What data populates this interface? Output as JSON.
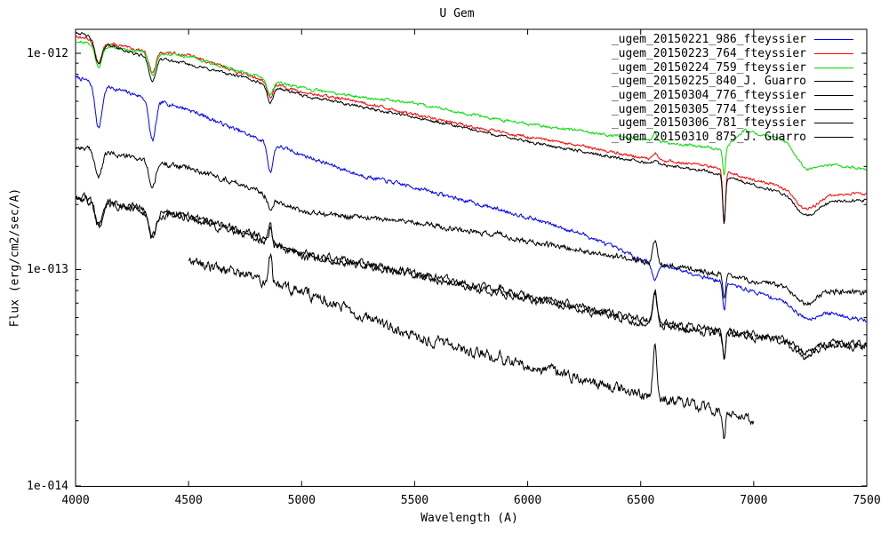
{
  "title": "U Gem",
  "axes": {
    "xlabel": "Wavelength (A)",
    "ylabel": "Flux (erg/cm2/sec/A)",
    "x_tick_labels": [
      "4000",
      "4500",
      "5000",
      "5500",
      "6000",
      "6500",
      "7000",
      "7500"
    ],
    "y_tick_labels": [
      "1e-012",
      "1e-013",
      "1e-014"
    ]
  },
  "chart_data": {
    "type": "line",
    "title": "U Gem",
    "xlabel": "Wavelength (A)",
    "ylabel": "Flux (erg/cm2/sec/A)",
    "x_range": [
      4000,
      7500
    ],
    "x_ticks": [
      4000,
      4500,
      5000,
      5500,
      6000,
      6500,
      7000,
      7500
    ],
    "y_scale": "log",
    "y_range": [
      1e-14,
      1.3e-12
    ],
    "y_ticks": [
      1e-12,
      1e-13,
      1e-14
    ],
    "grid": false,
    "legend_position": "top-right-inside",
    "line_colors": {
      "blue": "#0000ff",
      "red": "#ff0000",
      "green": "#00dd00",
      "black": "#000000"
    },
    "sampling_note": "continuous spectra encoded as log-flux anchor points [wavelength_A, flux_erg_cm2_s_A] plus Gaussian line features (amp in decades; negative=absorption, positive=emission)",
    "series": [
      {
        "name": "_ugem_20150221_986_fteyssier",
        "color": "#0000ff",
        "seed": 7,
        "noise": 0.008,
        "x_start": 4000,
        "x_end": 7500,
        "anchors": [
          [
            4000,
            7.75e-13
          ],
          [
            4250,
            6.5e-13
          ],
          [
            4500,
            5.5e-13
          ],
          [
            4800,
            4.05e-13
          ],
          [
            5000,
            3.4e-13
          ],
          [
            5250,
            2.75e-13
          ],
          [
            5500,
            2.4e-13
          ],
          [
            5750,
            2.05e-13
          ],
          [
            6000,
            1.75e-13
          ],
          [
            6250,
            1.45e-13
          ],
          [
            6500,
            1.12e-13
          ],
          [
            6750,
            9.5e-14
          ],
          [
            7000,
            7.9e-14
          ],
          [
            7250,
            6.6e-14
          ],
          [
            7500,
            5.8e-14
          ]
        ],
        "features": [
          {
            "center": 4102,
            "sigma": 15,
            "amp": -0.2
          },
          {
            "center": 4340,
            "sigma": 15,
            "amp": -0.19
          },
          {
            "center": 4861,
            "sigma": 12,
            "amp": -0.13
          },
          {
            "center": 6563,
            "sigma": 13,
            "amp": -0.08
          },
          {
            "center": 6869,
            "sigma": 6,
            "amp": -0.13
          },
          {
            "center": 7230,
            "sigma": 45,
            "amp": -0.05
          }
        ]
      },
      {
        "name": "_ugem_20150223_764_fteyssier",
        "color": "#ff0000",
        "seed": 13,
        "noise": 0.006,
        "x_start": 4000,
        "x_end": 7500,
        "anchors": [
          [
            4000,
            1.2e-12
          ],
          [
            4250,
            1.05e-12
          ],
          [
            4500,
            9.8e-13
          ],
          [
            4750,
            8e-13
          ],
          [
            5000,
            6.6e-13
          ],
          [
            5250,
            6e-13
          ],
          [
            5500,
            5.2e-13
          ],
          [
            5750,
            4.6e-13
          ],
          [
            6000,
            4.1e-13
          ],
          [
            6250,
            3.7e-13
          ],
          [
            6500,
            3.3e-13
          ],
          [
            6800,
            3e-13
          ],
          [
            7000,
            2.6e-13
          ],
          [
            7300,
            2.2e-13
          ],
          [
            7500,
            2.25e-13
          ]
        ],
        "features": [
          {
            "center": 4102,
            "sigma": 15,
            "amp": -0.1
          },
          {
            "center": 4340,
            "sigma": 15,
            "amp": -0.1
          },
          {
            "center": 4861,
            "sigma": 13,
            "amp": -0.07
          },
          {
            "center": 6563,
            "sigma": 8,
            "amp": 0.03
          },
          {
            "center": 6869,
            "sigma": 6,
            "amp": -0.24
          },
          {
            "center": 7230,
            "sigma": 45,
            "amp": -0.08
          }
        ]
      },
      {
        "name": "_ugem_20150224_759_fteyssier",
        "color": "#00dd00",
        "seed": 21,
        "noise": 0.006,
        "x_start": 4000,
        "x_end": 7500,
        "anchors": [
          [
            4000,
            1.14e-12
          ],
          [
            4250,
            1.03e-12
          ],
          [
            4500,
            9.7e-13
          ],
          [
            4750,
            8.1e-13
          ],
          [
            5000,
            6.9e-13
          ],
          [
            5250,
            6.3e-13
          ],
          [
            5500,
            5.9e-13
          ],
          [
            5750,
            5.2e-13
          ],
          [
            6000,
            4.7e-13
          ],
          [
            6250,
            4.35e-13
          ],
          [
            6500,
            4e-13
          ],
          [
            6860,
            3.6e-13
          ],
          [
            6960,
            4.4e-13
          ],
          [
            7120,
            4.05e-13
          ],
          [
            7300,
            3.1e-13
          ],
          [
            7500,
            2.9e-13
          ]
        ],
        "features": [
          {
            "center": 4102,
            "sigma": 15,
            "amp": -0.1
          },
          {
            "center": 4340,
            "sigma": 15,
            "amp": -0.1
          },
          {
            "center": 4861,
            "sigma": 13,
            "amp": -0.07
          },
          {
            "center": 6563,
            "sigma": 8,
            "amp": 0.04
          },
          {
            "center": 6869,
            "sigma": 6,
            "amp": -0.13
          },
          {
            "center": 7230,
            "sigma": 40,
            "amp": -0.07
          }
        ]
      },
      {
        "name": "_ugem_20150225_840_J. Guarro",
        "color": "#000000",
        "seed": 42,
        "noise": 0.006,
        "x_start": 4000,
        "x_end": 7500,
        "anchors": [
          [
            4000,
            1.26e-12
          ],
          [
            4250,
            1e-12
          ],
          [
            4500,
            8.9e-13
          ],
          [
            4750,
            7.7e-13
          ],
          [
            5000,
            6.4e-13
          ],
          [
            5250,
            5.7e-13
          ],
          [
            5500,
            5.05e-13
          ],
          [
            5750,
            4.45e-13
          ],
          [
            6000,
            3.9e-13
          ],
          [
            6250,
            3.5e-13
          ],
          [
            6500,
            3.15e-13
          ],
          [
            6800,
            2.85e-13
          ],
          [
            7000,
            2.45e-13
          ],
          [
            7300,
            2.05e-13
          ],
          [
            7500,
            2.1e-13
          ]
        ],
        "features": [
          {
            "center": 4102,
            "sigma": 15,
            "amp": -0.11
          },
          {
            "center": 4340,
            "sigma": 15,
            "amp": -0.11
          },
          {
            "center": 4861,
            "sigma": 13,
            "amp": -0.08
          },
          {
            "center": 6563,
            "sigma": 8,
            "amp": 0.02
          },
          {
            "center": 6869,
            "sigma": 6,
            "amp": -0.22
          },
          {
            "center": 7230,
            "sigma": 45,
            "amp": -0.08
          }
        ]
      },
      {
        "name": "_ugem_20150304_776_fteyssier",
        "color": "#000000",
        "seed": 99,
        "noise": 0.011,
        "x_start": 4000,
        "x_end": 7500,
        "anchors": [
          [
            4000,
            3.7e-13
          ],
          [
            4250,
            3.3e-13
          ],
          [
            4500,
            2.95e-13
          ],
          [
            4750,
            2.45e-13
          ],
          [
            5000,
            1.85e-13
          ],
          [
            5250,
            1.75e-13
          ],
          [
            5500,
            1.66e-13
          ],
          [
            5750,
            1.5e-13
          ],
          [
            6000,
            1.35e-13
          ],
          [
            6250,
            1.22e-13
          ],
          [
            6500,
            1.1e-13
          ],
          [
            6750,
            1e-13
          ],
          [
            7000,
            8.8e-14
          ],
          [
            7250,
            8e-14
          ],
          [
            7500,
            7.8e-14
          ]
        ],
        "features": [
          {
            "center": 4102,
            "sigma": 15,
            "amp": -0.12
          },
          {
            "center": 4340,
            "sigma": 15,
            "amp": -0.12
          },
          {
            "center": 4861,
            "sigma": 11,
            "amp": -0.05
          },
          {
            "center": 5876,
            "sigma": 7,
            "amp": 0.025
          },
          {
            "center": 6563,
            "sigma": 9,
            "amp": 0.1
          },
          {
            "center": 6869,
            "sigma": 6,
            "amp": -0.12
          },
          {
            "center": 7230,
            "sigma": 45,
            "amp": -0.06
          }
        ]
      },
      {
        "name": "_ugem_20150305_774_fteyssier",
        "color": "#000000",
        "seed": 123,
        "noise": 0.015,
        "x_start": 4000,
        "x_end": 7500,
        "anchors": [
          [
            4000,
            2.2e-13
          ],
          [
            4250,
            1.95e-13
          ],
          [
            4500,
            1.77e-13
          ],
          [
            4750,
            1.5e-13
          ],
          [
            5000,
            1.19e-13
          ],
          [
            5250,
            1.08e-13
          ],
          [
            5500,
            9.7e-14
          ],
          [
            5750,
            8.5e-14
          ],
          [
            6000,
            7.5e-14
          ],
          [
            6250,
            6.7e-14
          ],
          [
            6500,
            5.9e-14
          ],
          [
            6750,
            5.4e-14
          ],
          [
            7000,
            5e-14
          ],
          [
            7250,
            4.7e-14
          ],
          [
            7500,
            4.5e-14
          ]
        ],
        "features": [
          {
            "center": 4102,
            "sigma": 15,
            "amp": -0.12
          },
          {
            "center": 4340,
            "sigma": 15,
            "amp": -0.12
          },
          {
            "center": 4861,
            "sigma": 8,
            "amp": 0.07
          },
          {
            "center": 5876,
            "sigma": 7,
            "amp": 0.03
          },
          {
            "center": 6563,
            "sigma": 9,
            "amp": 0.14
          },
          {
            "center": 6869,
            "sigma": 6,
            "amp": -0.12
          },
          {
            "center": 7230,
            "sigma": 45,
            "amp": -0.06
          }
        ]
      },
      {
        "name": "_ugem_20150306_781_fteyssier",
        "color": "#000000",
        "seed": 314,
        "noise": 0.015,
        "x_start": 4000,
        "x_end": 7500,
        "anchors": [
          [
            4000,
            2.13e-13
          ],
          [
            4250,
            1.89e-13
          ],
          [
            4500,
            1.72e-13
          ],
          [
            4750,
            1.45e-13
          ],
          [
            5000,
            1.15e-13
          ],
          [
            5250,
            1.05e-13
          ],
          [
            5500,
            9.4e-14
          ],
          [
            5750,
            8.2e-14
          ],
          [
            6000,
            7.3e-14
          ],
          [
            6250,
            6.5e-14
          ],
          [
            6500,
            5.7e-14
          ],
          [
            6750,
            5.2e-14
          ],
          [
            7000,
            4.85e-14
          ],
          [
            7250,
            4.55e-14
          ],
          [
            7500,
            4.35e-14
          ]
        ],
        "features": [
          {
            "center": 4102,
            "sigma": 15,
            "amp": -0.12
          },
          {
            "center": 4340,
            "sigma": 15,
            "amp": -0.12
          },
          {
            "center": 4861,
            "sigma": 8,
            "amp": 0.07
          },
          {
            "center": 5876,
            "sigma": 7,
            "amp": 0.03
          },
          {
            "center": 6563,
            "sigma": 9,
            "amp": 0.14
          },
          {
            "center": 6869,
            "sigma": 6,
            "amp": -0.12
          },
          {
            "center": 7230,
            "sigma": 45,
            "amp": -0.06
          }
        ]
      },
      {
        "name": "_ugem_20150310_875_J. Guarro",
        "color": "#000000",
        "seed": 555,
        "noise": 0.022,
        "x_start": 4500,
        "x_end": 7000,
        "anchors": [
          [
            4500,
            1.1e-13
          ],
          [
            4750,
            9.5e-14
          ],
          [
            5000,
            7.9e-14
          ],
          [
            5250,
            6.3e-14
          ],
          [
            5500,
            4.9e-14
          ],
          [
            5750,
            4.2e-14
          ],
          [
            6000,
            3.6e-14
          ],
          [
            6250,
            3.1e-14
          ],
          [
            6500,
            2.65e-14
          ],
          [
            6750,
            2.35e-14
          ],
          [
            6869,
            2.2e-14
          ],
          [
            7000,
            1.95e-14
          ]
        ],
        "features": [
          {
            "center": 4861,
            "sigma": 8,
            "amp": 0.13
          },
          {
            "center": 5876,
            "sigma": 7,
            "amp": 0.05
          },
          {
            "center": 6563,
            "sigma": 9,
            "amp": 0.22
          },
          {
            "center": 6869,
            "sigma": 6,
            "amp": -0.12
          }
        ]
      }
    ]
  }
}
